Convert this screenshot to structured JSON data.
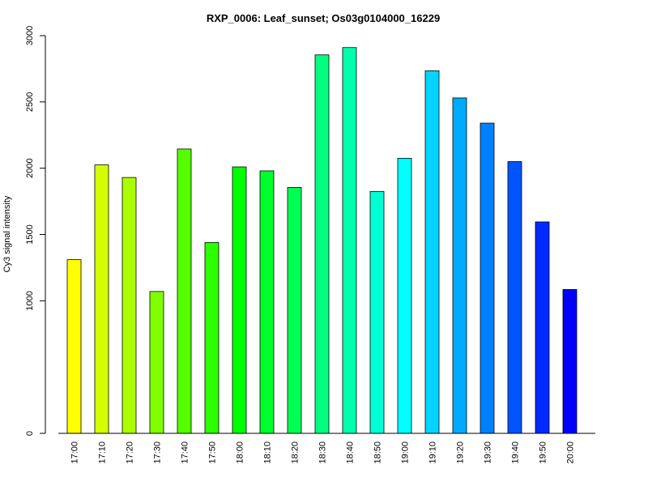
{
  "chart_data": {
    "type": "bar",
    "title": "RXP_0006: Leaf_sunset; Os03g0104000_16229",
    "xlabel": "",
    "ylabel": "Cy3 signal intensity",
    "ylim": [
      0,
      3000
    ],
    "yticks": [
      0,
      1000,
      1500,
      2000,
      2500,
      3000
    ],
    "grid": false,
    "categories": [
      "17:00",
      "17:10",
      "17:20",
      "17:30",
      "17:40",
      "17:50",
      "18:00",
      "18:10",
      "18:20",
      "18:30",
      "18:40",
      "18:50",
      "19:00",
      "19:10",
      "19:20",
      "19:30",
      "19:40",
      "19:50",
      "20:00"
    ],
    "values": [
      1310,
      2025,
      1930,
      1070,
      2145,
      1440,
      2010,
      1980,
      1855,
      2855,
      2910,
      1825,
      2075,
      2735,
      2530,
      2340,
      2050,
      1595,
      1085
    ],
    "colors": [
      "#FFFF00",
      "#D4FF00",
      "#AAFF00",
      "#80FF00",
      "#55FF00",
      "#2BFF00",
      "#00FF00",
      "#00FF2B",
      "#00FF55",
      "#00FF80",
      "#00FFAA",
      "#00FFD4",
      "#00FFFF",
      "#00D4FF",
      "#00AAFF",
      "#0080FF",
      "#0055FF",
      "#002BFF",
      "#0000FF"
    ]
  }
}
